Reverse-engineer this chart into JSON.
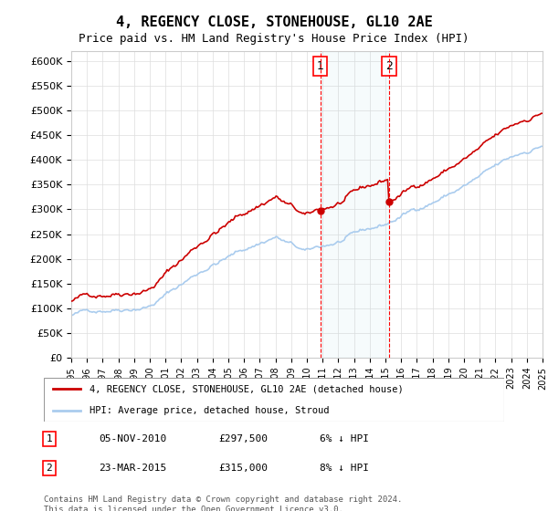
{
  "title": "4, REGENCY CLOSE, STONEHOUSE, GL10 2AE",
  "subtitle": "Price paid vs. HM Land Registry's House Price Index (HPI)",
  "ylabel_ticks": [
    "£0",
    "£50K",
    "£100K",
    "£150K",
    "£200K",
    "£250K",
    "£300K",
    "£350K",
    "£400K",
    "£450K",
    "£500K",
    "£550K",
    "£600K"
  ],
  "ylim": [
    0,
    620000
  ],
  "yticks": [
    0,
    50000,
    100000,
    150000,
    200000,
    250000,
    300000,
    350000,
    400000,
    450000,
    500000,
    550000,
    600000
  ],
  "hpi_color": "#aaccee",
  "price_color": "#cc0000",
  "transaction1": {
    "date_num": 2010.85,
    "price": 297500,
    "label": "1"
  },
  "transaction2": {
    "date_num": 2015.23,
    "price": 315000,
    "label": "2"
  },
  "legend_line1": "4, REGENCY CLOSE, STONEHOUSE, GL10 2AE (detached house)",
  "legend_line2": "HPI: Average price, detached house, Stroud",
  "table_row1": [
    "1",
    "05-NOV-2010",
    "£297,500",
    "6% ↓ HPI"
  ],
  "table_row2": [
    "2",
    "23-MAR-2015",
    "£315,000",
    "8% ↓ HPI"
  ],
  "footer": "Contains HM Land Registry data © Crown copyright and database right 2024.\nThis data is licensed under the Open Government Licence v3.0.",
  "background_color": "#ffffff",
  "grid_color": "#dddddd"
}
